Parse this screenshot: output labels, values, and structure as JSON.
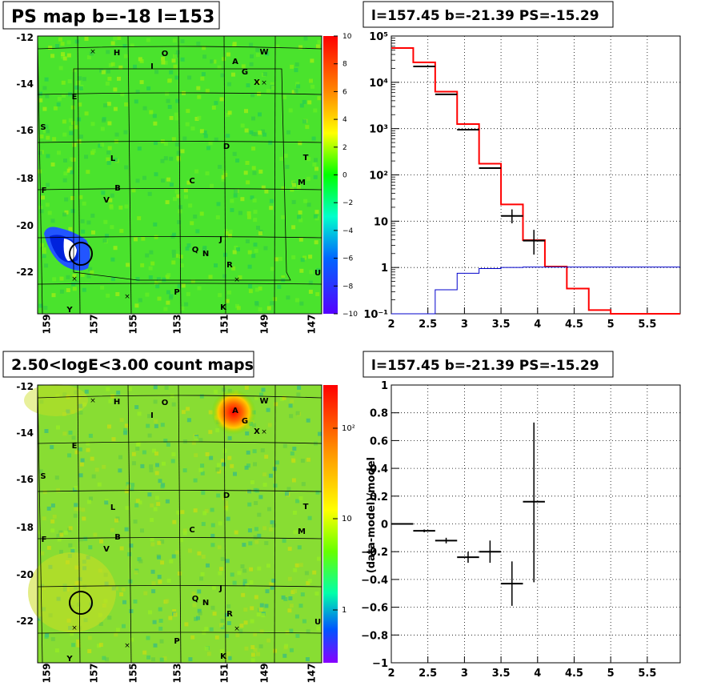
{
  "panels": {
    "top_left_title": "PS map b=-18 l=153",
    "top_right_title": "l=157.45 b=-21.39 PS=-15.29",
    "bottom_left_title": "2.50<logE<3.00 count maps",
    "bottom_right_title": "l=157.45 b=-21.39 PS=-15.29"
  },
  "maps": {
    "y_ticks": [
      "-12",
      "-14",
      "-16",
      "-18",
      "-20",
      "-22"
    ],
    "x_ticks": [
      "159",
      "157",
      "155",
      "153",
      "151",
      "149",
      "147"
    ],
    "sources": [
      {
        "label": "H"
      },
      {
        "label": "O"
      },
      {
        "label": "I"
      },
      {
        "label": "A"
      },
      {
        "label": "W"
      },
      {
        "label": "G"
      },
      {
        "label": "X"
      },
      {
        "label": "E"
      },
      {
        "label": "S"
      },
      {
        "label": "D"
      },
      {
        "label": "L"
      },
      {
        "label": "T"
      },
      {
        "label": "C"
      },
      {
        "label": "M"
      },
      {
        "label": "B"
      },
      {
        "label": "F"
      },
      {
        "label": "V"
      },
      {
        "label": "J"
      },
      {
        "label": "Q"
      },
      {
        "label": "N"
      },
      {
        "label": "R"
      },
      {
        "label": "U"
      },
      {
        "label": "P"
      },
      {
        "label": "Y"
      },
      {
        "label": "K"
      }
    ],
    "ps_colorbar_ticks": [
      "10",
      "8",
      "6",
      "4",
      "2",
      "0",
      "−2",
      "−4",
      "−6",
      "−8",
      "−10"
    ],
    "count_colorbar_ticks": [
      "10",
      "1"
    ],
    "count_colorbar_major": "10²"
  },
  "chart_data": [
    {
      "type": "line",
      "title": "l=157.45 b=-21.39 PS=-15.29",
      "x_ticks": [
        "2",
        "2.5",
        "3",
        "3.5",
        "4",
        "4.5",
        "5",
        "5.5"
      ],
      "y_ticks": [
        "10⁻¹",
        "1",
        "10",
        "10²",
        "10³",
        "10⁴",
        "10⁵"
      ],
      "xlim": [
        2,
        5.95
      ],
      "ylim": [
        0.1,
        100000
      ],
      "log_y": true,
      "grid": true,
      "series": [
        {
          "style": "step-red",
          "bins": [
            [
              2.0,
              2.3,
              55000
            ],
            [
              2.3,
              2.6,
              27000
            ],
            [
              2.6,
              2.9,
              6300
            ],
            [
              2.9,
              3.2,
              1250
            ],
            [
              3.2,
              3.5,
              175
            ],
            [
              3.5,
              3.8,
              23
            ],
            [
              3.8,
              4.1,
              3.9
            ],
            [
              4.1,
              4.4,
              1.05
            ],
            [
              4.4,
              4.7,
              0.35
            ],
            [
              4.7,
              5.0,
              0.12
            ],
            [
              5.0,
              5.95,
              0.1
            ]
          ]
        },
        {
          "style": "step-blue",
          "bins": [
            [
              2.0,
              2.3,
              0.08
            ],
            [
              2.3,
              2.6,
              0.1
            ],
            [
              2.6,
              2.9,
              0.33
            ],
            [
              2.9,
              3.2,
              0.75
            ],
            [
              3.2,
              3.5,
              0.95
            ],
            [
              3.5,
              3.8,
              1.0
            ],
            [
              3.8,
              4.1,
              1.02
            ],
            [
              4.1,
              5.95,
              1.02
            ]
          ]
        },
        {
          "style": "points-black",
          "points": [
            {
              "x": 2.45,
              "y": 22000,
              "xe": 0.15
            },
            {
              "x": 2.75,
              "y": 5500,
              "xe": 0.15
            },
            {
              "x": 3.05,
              "y": 950,
              "xe": 0.15
            },
            {
              "x": 3.35,
              "y": 140,
              "xe": 0.15
            },
            {
              "x": 3.65,
              "y": 13,
              "xe": 0.15,
              "ylo": 9,
              "yhi": 18
            },
            {
              "x": 3.95,
              "y": 3.8,
              "xe": 0.15,
              "ylo": 1.9,
              "yhi": 6.5
            }
          ]
        }
      ]
    },
    {
      "type": "scatter",
      "title": "l=157.45 b=-21.39 PS=-15.29",
      "ylabel": "(data-model)/model",
      "x_ticks": [
        "2",
        "2.5",
        "3",
        "3.5",
        "4",
        "4.5",
        "5",
        "5.5"
      ],
      "y_ticks": [
        "−1",
        "−0.8",
        "−0.6",
        "−0.4",
        "−0.2",
        "0",
        "0.2",
        "0.4",
        "0.6",
        "0.8",
        "1"
      ],
      "xlim": [
        2,
        5.95
      ],
      "ylim": [
        -1,
        1
      ],
      "grid": true,
      "points": [
        {
          "x": 2.15,
          "y": 0.0,
          "xe": 0.15,
          "ye": 0.005
        },
        {
          "x": 2.45,
          "y": -0.05,
          "xe": 0.15,
          "ye": 0.01
        },
        {
          "x": 2.75,
          "y": -0.12,
          "xe": 0.15,
          "ye": 0.02
        },
        {
          "x": 3.05,
          "y": -0.24,
          "xe": 0.15,
          "ye": 0.04
        },
        {
          "x": 3.35,
          "y": -0.2,
          "xe": 0.15,
          "ye": 0.08
        },
        {
          "x": 3.65,
          "y": -0.43,
          "xe": 0.15,
          "ye": 0.16
        },
        {
          "x": 3.95,
          "y": 0.16,
          "xe": 0.15,
          "ylo": -0.42,
          "yhi": 0.73
        }
      ]
    }
  ]
}
